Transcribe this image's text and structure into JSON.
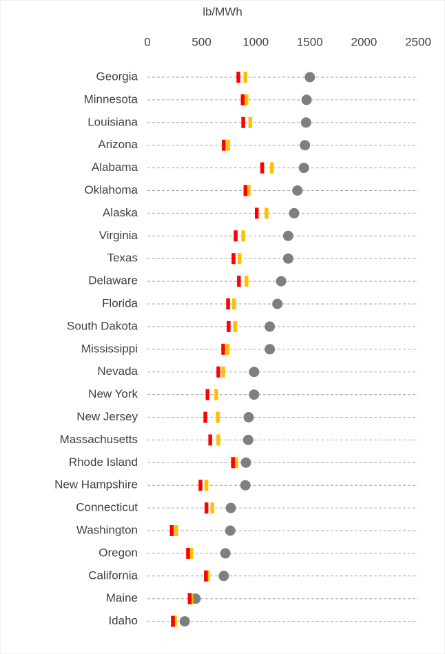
{
  "chart_data": {
    "type": "dot",
    "title": "lb/MWh",
    "categories": [
      "Georgia",
      "Minnesota",
      "Louisiana",
      "Arizona",
      "Alabama",
      "Oklahoma",
      "Alaska",
      "Virginia",
      "Texas",
      "Delaware",
      "Florida",
      "South Dakota",
      "Mississippi",
      "Nevada",
      "New York",
      "New Jersey",
      "Massachusetts",
      "Rhode Island",
      "New Hampshire",
      "Connecticut",
      "Washington",
      "Oregon",
      "California",
      "Maine",
      "Idaho"
    ],
    "series": [
      {
        "color": "#7f7f7f",
        "marker": "circle",
        "values": [
          1500,
          1470,
          1465,
          1455,
          1445,
          1385,
          1355,
          1300,
          1300,
          1235,
          1200,
          1130,
          1130,
          985,
          985,
          935,
          930,
          910,
          905,
          770,
          765,
          720,
          705,
          445,
          345
        ]
      },
      {
        "color": "#ffc000",
        "marker": "bar",
        "values": [
          905,
          915,
          950,
          745,
          1150,
          935,
          1100,
          885,
          850,
          915,
          800,
          810,
          740,
          700,
          635,
          650,
          655,
          820,
          545,
          600,
          265,
          405,
          560,
          405,
          255
        ]
      },
      {
        "color": "#ff0000",
        "marker": "bar",
        "values": [
          840,
          880,
          885,
          705,
          1060,
          905,
          1010,
          815,
          795,
          845,
          745,
          750,
          700,
          655,
          555,
          535,
          580,
          790,
          490,
          545,
          225,
          375,
          540,
          390,
          235
        ]
      }
    ],
    "xlim": [
      0,
      2500
    ],
    "xticks": [
      0,
      500,
      1000,
      1500,
      2000,
      2500
    ],
    "grid": true
  }
}
